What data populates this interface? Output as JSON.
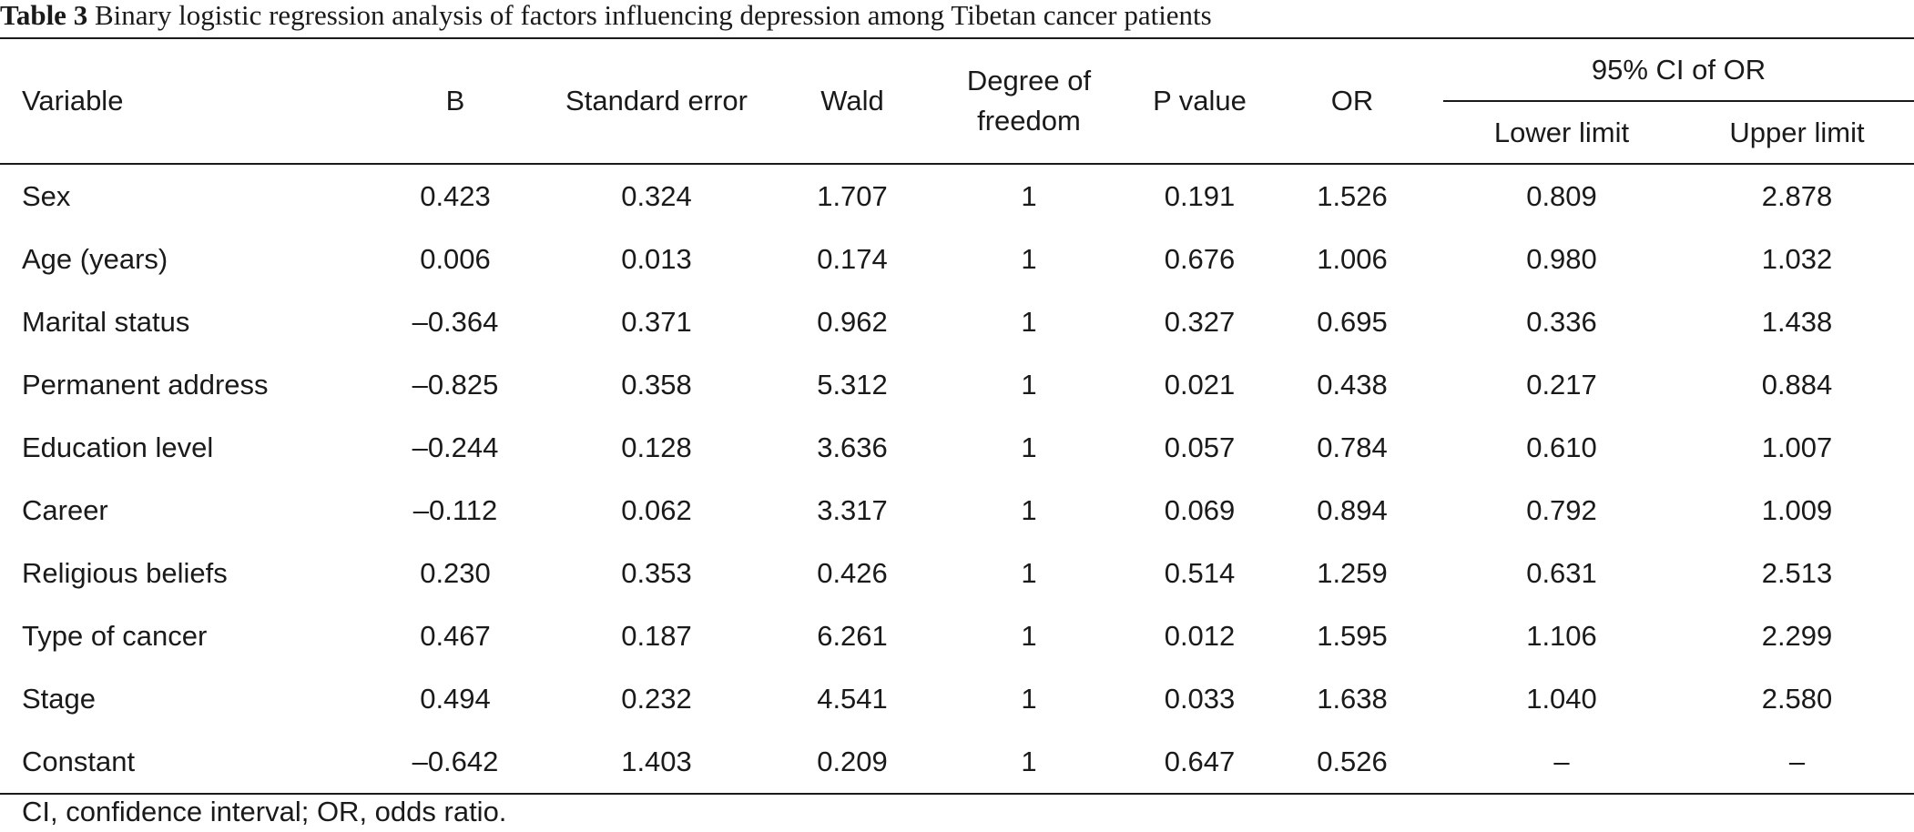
{
  "caption": {
    "label": "Table 3",
    "text": "Binary logistic regression analysis of factors influencing depression among Tibetan cancer patients"
  },
  "headers": {
    "variable": "Variable",
    "b": "B",
    "se": "Standard error",
    "wald": "Wald",
    "df_line1": "Degree of",
    "df_line2": "freedom",
    "p": "P value",
    "or": "OR",
    "ci_group": "95% CI of OR",
    "lower": "Lower limit",
    "upper": "Upper limit"
  },
  "rows": [
    {
      "variable": "Sex",
      "b": "0.423",
      "se": "0.324",
      "wald": "1.707",
      "df": "1",
      "p": "0.191",
      "or": "1.526",
      "lower": "0.809",
      "upper": "2.878"
    },
    {
      "variable": "Age (years)",
      "b": "0.006",
      "se": "0.013",
      "wald": "0.174",
      "df": "1",
      "p": "0.676",
      "or": "1.006",
      "lower": "0.980",
      "upper": "1.032"
    },
    {
      "variable": "Marital status",
      "b": "–0.364",
      "se": "0.371",
      "wald": "0.962",
      "df": "1",
      "p": "0.327",
      "or": "0.695",
      "lower": "0.336",
      "upper": "1.438"
    },
    {
      "variable": "Permanent address",
      "b": "–0.825",
      "se": "0.358",
      "wald": "5.312",
      "df": "1",
      "p": "0.021",
      "or": "0.438",
      "lower": "0.217",
      "upper": "0.884"
    },
    {
      "variable": "Education level",
      "b": "–0.244",
      "se": "0.128",
      "wald": "3.636",
      "df": "1",
      "p": "0.057",
      "or": "0.784",
      "lower": "0.610",
      "upper": "1.007"
    },
    {
      "variable": "Career",
      "b": "–0.112",
      "se": "0.062",
      "wald": "3.317",
      "df": "1",
      "p": "0.069",
      "or": "0.894",
      "lower": "0.792",
      "upper": "1.009"
    },
    {
      "variable": "Religious beliefs",
      "b": "0.230",
      "se": "0.353",
      "wald": "0.426",
      "df": "1",
      "p": "0.514",
      "or": "1.259",
      "lower": "0.631",
      "upper": "2.513"
    },
    {
      "variable": "Type of cancer",
      "b": "0.467",
      "se": "0.187",
      "wald": "6.261",
      "df": "1",
      "p": "0.012",
      "or": "1.595",
      "lower": "1.106",
      "upper": "2.299"
    },
    {
      "variable": "Stage",
      "b": "0.494",
      "se": "0.232",
      "wald": "4.541",
      "df": "1",
      "p": "0.033",
      "or": "1.638",
      "lower": "1.040",
      "upper": "2.580"
    },
    {
      "variable": "Constant",
      "b": "–0.642",
      "se": "1.403",
      "wald": "0.209",
      "df": "1",
      "p": "0.647",
      "or": "0.526",
      "lower": "–",
      "upper": "–"
    }
  ],
  "footnote": "CI, confidence interval; OR, odds ratio."
}
